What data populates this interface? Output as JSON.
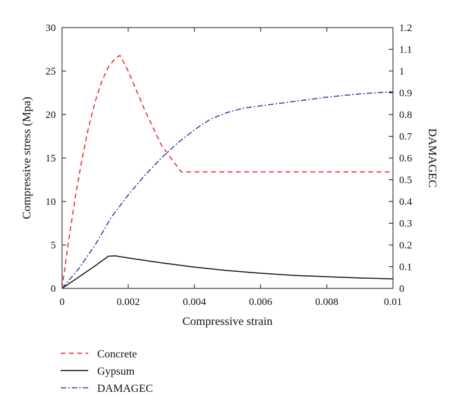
{
  "chart_data": {
    "type": "line",
    "xlabel": "Compressive strain",
    "ylabel": "Compressive stress (Mpa)",
    "y2label": "DAMAGEC",
    "xlim": [
      0,
      0.01
    ],
    "ylim": [
      0,
      30
    ],
    "y2lim": [
      0,
      1.2
    ],
    "x_ticks": [
      "0",
      "0.002",
      "0.004",
      "0.006",
      "0.008",
      "0.01"
    ],
    "y_ticks": [
      "0",
      "5",
      "10",
      "15",
      "20",
      "25",
      "30"
    ],
    "y2_ticks": [
      "0",
      "0.1",
      "0.2",
      "0.3",
      "0.4",
      "0.5",
      "0.6",
      "0.7",
      "0.8",
      "0.9",
      "1",
      "1.1",
      "1.2"
    ],
    "grid": false,
    "legend_position": "below plot, left",
    "series": [
      {
        "name": "Concrete",
        "axis": "left",
        "color": "#e8202a",
        "style": "dashed",
        "x": [
          0,
          0.0002,
          0.0004,
          0.0006,
          0.0008,
          0.001,
          0.0012,
          0.0014,
          0.0016,
          0.0017,
          0.00175,
          0.002,
          0.0025,
          0.003,
          0.0036,
          0.004,
          0.005,
          0.006,
          0.007,
          0.008,
          0.009,
          0.01
        ],
        "y": [
          0,
          5.5,
          10.5,
          14.8,
          18.5,
          21.5,
          23.8,
          25.5,
          26.4,
          26.7,
          26.8,
          25.0,
          20.5,
          16.5,
          13.4,
          13.4,
          13.4,
          13.4,
          13.4,
          13.4,
          13.4,
          13.4
        ]
      },
      {
        "name": "Gypsum",
        "axis": "left",
        "color": "#111111",
        "style": "solid",
        "x": [
          0,
          0.0005,
          0.001,
          0.0014,
          0.0016,
          0.002,
          0.003,
          0.004,
          0.005,
          0.006,
          0.007,
          0.008,
          0.009,
          0.01
        ],
        "y": [
          0,
          1.3,
          2.6,
          3.7,
          3.75,
          3.5,
          2.95,
          2.45,
          2.05,
          1.75,
          1.5,
          1.35,
          1.2,
          1.1
        ]
      },
      {
        "name": "DAMAGEC",
        "axis": "right",
        "color": "#3a3aa8",
        "style": "dashdot",
        "x": [
          0,
          0.0005,
          0.001,
          0.0015,
          0.002,
          0.0025,
          0.003,
          0.0035,
          0.004,
          0.0045,
          0.005,
          0.0055,
          0.006,
          0.007,
          0.008,
          0.009,
          0.0095,
          0.01
        ],
        "y": [
          0,
          0.09,
          0.2,
          0.33,
          0.43,
          0.52,
          0.6,
          0.67,
          0.73,
          0.78,
          0.81,
          0.83,
          0.84,
          0.86,
          0.88,
          0.895,
          0.9,
          0.905
        ]
      }
    ]
  }
}
